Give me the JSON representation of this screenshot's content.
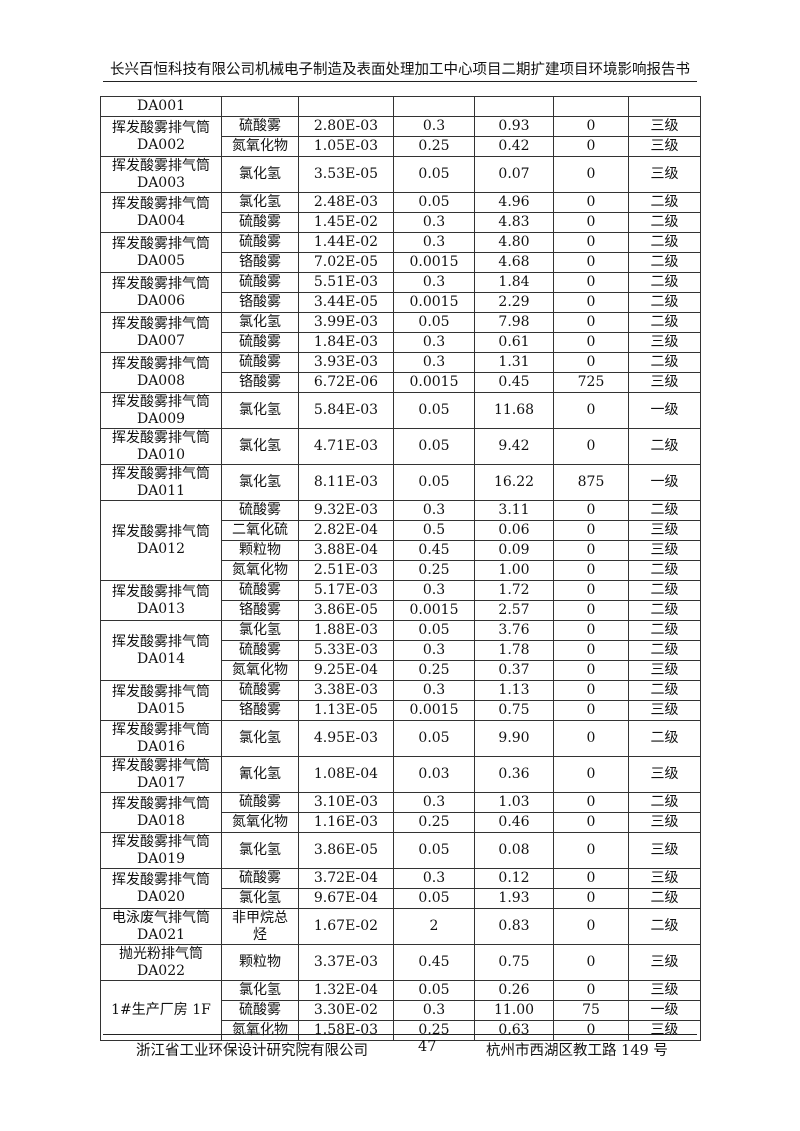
{
  "header": {
    "title": "长兴百恒科技有限公司机械电子制造及表面处理加工中心项目二期扩建项目环境影响报告书"
  },
  "table": {
    "groups": [
      {
        "source": "DA001",
        "rows": [
          [
            "",
            "",
            "",
            "",
            "",
            ""
          ]
        ]
      },
      {
        "source": "挥发酸雾排气筒DA002",
        "rows": [
          [
            "硫酸雾",
            "2.80E-03",
            "0.3",
            "0.93",
            "0",
            "三级"
          ],
          [
            "氮氧化物",
            "1.05E-03",
            "0.25",
            "0.42",
            "0",
            "三级"
          ]
        ]
      },
      {
        "source": "挥发酸雾排气筒DA003",
        "rows": [
          [
            "氯化氢",
            "3.53E-05",
            "0.05",
            "0.07",
            "0",
            "三级"
          ]
        ]
      },
      {
        "source": "挥发酸雾排气筒DA004",
        "rows": [
          [
            "氯化氢",
            "2.48E-03",
            "0.05",
            "4.96",
            "0",
            "二级"
          ],
          [
            "硫酸雾",
            "1.45E-02",
            "0.3",
            "4.83",
            "0",
            "二级"
          ]
        ]
      },
      {
        "source": "挥发酸雾排气筒DA005",
        "rows": [
          [
            "硫酸雾",
            "1.44E-02",
            "0.3",
            "4.80",
            "0",
            "二级"
          ],
          [
            "铬酸雾",
            "7.02E-05",
            "0.0015",
            "4.68",
            "0",
            "二级"
          ]
        ]
      },
      {
        "source": "挥发酸雾排气筒DA006",
        "rows": [
          [
            "硫酸雾",
            "5.51E-03",
            "0.3",
            "1.84",
            "0",
            "二级"
          ],
          [
            "铬酸雾",
            "3.44E-05",
            "0.0015",
            "2.29",
            "0",
            "二级"
          ]
        ]
      },
      {
        "source": "挥发酸雾排气筒DA007",
        "rows": [
          [
            "氯化氢",
            "3.99E-03",
            "0.05",
            "7.98",
            "0",
            "二级"
          ],
          [
            "硫酸雾",
            "1.84E-03",
            "0.3",
            "0.61",
            "0",
            "三级"
          ]
        ]
      },
      {
        "source": "挥发酸雾排气筒DA008",
        "rows": [
          [
            "硫酸雾",
            "3.93E-03",
            "0.3",
            "1.31",
            "0",
            "二级"
          ],
          [
            "铬酸雾",
            "6.72E-06",
            "0.0015",
            "0.45",
            "725",
            "三级"
          ]
        ]
      },
      {
        "source": "挥发酸雾排气筒DA009",
        "rows": [
          [
            "氯化氢",
            "5.84E-03",
            "0.05",
            "11.68",
            "0",
            "一级"
          ]
        ]
      },
      {
        "source": "挥发酸雾排气筒DA010",
        "rows": [
          [
            "氯化氢",
            "4.71E-03",
            "0.05",
            "9.42",
            "0",
            "二级"
          ]
        ]
      },
      {
        "source": "挥发酸雾排气筒DA011",
        "rows": [
          [
            "氯化氢",
            "8.11E-03",
            "0.05",
            "16.22",
            "875",
            "一级"
          ]
        ]
      },
      {
        "source": "挥发酸雾排气筒DA012",
        "rows": [
          [
            "硫酸雾",
            "9.32E-03",
            "0.3",
            "3.11",
            "0",
            "二级"
          ],
          [
            "二氧化硫",
            "2.82E-04",
            "0.5",
            "0.06",
            "0",
            "三级"
          ],
          [
            "颗粒物",
            "3.88E-04",
            "0.45",
            "0.09",
            "0",
            "三级"
          ],
          [
            "氮氧化物",
            "2.51E-03",
            "0.25",
            "1.00",
            "0",
            "二级"
          ]
        ]
      },
      {
        "source": "挥发酸雾排气筒DA013",
        "rows": [
          [
            "硫酸雾",
            "5.17E-03",
            "0.3",
            "1.72",
            "0",
            "二级"
          ],
          [
            "铬酸雾",
            "3.86E-05",
            "0.0015",
            "2.57",
            "0",
            "二级"
          ]
        ]
      },
      {
        "source": "挥发酸雾排气筒DA014",
        "rows": [
          [
            "氯化氢",
            "1.88E-03",
            "0.05",
            "3.76",
            "0",
            "二级"
          ],
          [
            "硫酸雾",
            "5.33E-03",
            "0.3",
            "1.78",
            "0",
            "二级"
          ],
          [
            "氮氧化物",
            "9.25E-04",
            "0.25",
            "0.37",
            "0",
            "三级"
          ]
        ]
      },
      {
        "source": "挥发酸雾排气筒DA015",
        "rows": [
          [
            "硫酸雾",
            "3.38E-03",
            "0.3",
            "1.13",
            "0",
            "二级"
          ],
          [
            "铬酸雾",
            "1.13E-05",
            "0.0015",
            "0.75",
            "0",
            "三级"
          ]
        ]
      },
      {
        "source": "挥发酸雾排气筒DA016",
        "rows": [
          [
            "氯化氢",
            "4.95E-03",
            "0.05",
            "9.90",
            "0",
            "二级"
          ]
        ]
      },
      {
        "source": "挥发酸雾排气筒DA017",
        "rows": [
          [
            "氰化氢",
            "1.08E-04",
            "0.03",
            "0.36",
            "0",
            "三级"
          ]
        ]
      },
      {
        "source": "挥发酸雾排气筒DA018",
        "rows": [
          [
            "硫酸雾",
            "3.10E-03",
            "0.3",
            "1.03",
            "0",
            "二级"
          ],
          [
            "氮氧化物",
            "1.16E-03",
            "0.25",
            "0.46",
            "0",
            "三级"
          ]
        ]
      },
      {
        "source": "挥发酸雾排气筒DA019",
        "rows": [
          [
            "氯化氢",
            "3.86E-05",
            "0.05",
            "0.08",
            "0",
            "三级"
          ]
        ]
      },
      {
        "source": "挥发酸雾排气筒DA020",
        "rows": [
          [
            "硫酸雾",
            "3.72E-04",
            "0.3",
            "0.12",
            "0",
            "三级"
          ],
          [
            "氯化氢",
            "9.67E-04",
            "0.05",
            "1.93",
            "0",
            "二级"
          ]
        ]
      },
      {
        "source": "电泳废气排气筒DA021",
        "rows": [
          [
            "非甲烷总烃",
            "1.67E-02",
            "2",
            "0.83",
            "0",
            "二级"
          ]
        ]
      },
      {
        "source": "抛光粉排气筒DA022",
        "rows": [
          [
            "颗粒物",
            "3.37E-03",
            "0.45",
            "0.75",
            "0",
            "三级"
          ]
        ]
      },
      {
        "source": "1#生产厂房 1F",
        "rows": [
          [
            "氯化氢",
            "1.32E-04",
            "0.05",
            "0.26",
            "0",
            "三级"
          ],
          [
            "硫酸雾",
            "3.30E-02",
            "0.3",
            "11.00",
            "75",
            "一级"
          ],
          [
            "氮氧化物",
            "1.58E-03",
            "0.25",
            "0.63",
            "0",
            "三级"
          ]
        ]
      }
    ]
  },
  "footer": {
    "org": "浙江省工业环保设计研究院有限公司",
    "page": "47",
    "address": "杭州市西湖区教工路 149 号"
  }
}
